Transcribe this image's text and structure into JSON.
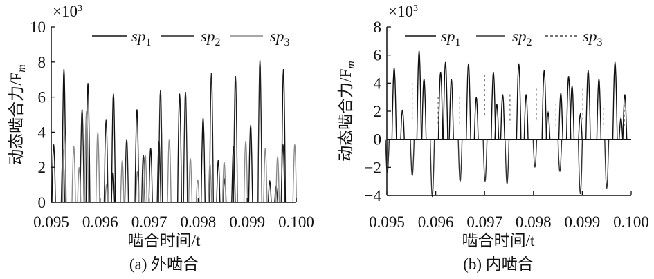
{
  "chart_data": [
    {
      "type": "line",
      "caption": "(a) 外啮合",
      "xlabel": "啮合时间/t",
      "ylabel": "动态啮合力/F",
      "ylabel_sub": "m",
      "y_multiplier": "×10",
      "y_multiplier_exp": "3",
      "xlim": [
        0.095,
        0.1
      ],
      "ylim": [
        0,
        10
      ],
      "xticks": [
        "0.095",
        "0.096",
        "0.097",
        "0.098",
        "0.099",
        "0.100"
      ],
      "yticks": [
        "0",
        "2",
        "4",
        "6",
        "8",
        "10"
      ],
      "legend_position": "top",
      "series": [
        {
          "name": "sp",
          "sub": "1",
          "color": "#111111",
          "style": "solid",
          "peaks": [
            [
              0.09505,
              3.3
            ],
            [
              0.09526,
              7.6
            ],
            [
              0.09575,
              6.8
            ],
            [
              0.09627,
              6.2
            ],
            [
              0.09675,
              5.3
            ],
            [
              0.09703,
              3.1
            ],
            [
              0.09762,
              6.2
            ],
            [
              0.0981,
              4.8
            ],
            [
              0.09841,
              2.4
            ],
            [
              0.09872,
              3.2
            ],
            [
              0.09907,
              4.4
            ],
            [
              0.09946,
              1.2
            ],
            [
              0.09974,
              7.6
            ],
            [
              0.09626,
              1.7
            ]
          ]
        },
        {
          "name": "sp",
          "sub": "2",
          "color": "#222222",
          "style": "solid",
          "peaks": [
            [
              0.09524,
              3.0
            ],
            [
              0.09563,
              5.3
            ],
            [
              0.09612,
              4.7
            ],
            [
              0.09654,
              3.6
            ],
            [
              0.09688,
              2.7
            ],
            [
              0.09723,
              6.4
            ],
            [
              0.0972,
              3.5
            ],
            [
              0.09774,
              6.3
            ],
            [
              0.09827,
              7.4
            ],
            [
              0.09854,
              1.3
            ],
            [
              0.09876,
              7.2
            ],
            [
              0.09926,
              8.1
            ],
            [
              0.09959,
              0.9
            ],
            [
              0.09973,
              3.3
            ]
          ]
        },
        {
          "name": "sp",
          "sub": "3",
          "color": "#8a8a8a",
          "style": "solid",
          "peaks": [
            [
              0.09527,
              4.0
            ],
            [
              0.09546,
              3.2
            ],
            [
              0.09557,
              2.0
            ],
            [
              0.09572,
              5.2
            ],
            [
              0.09595,
              4.0
            ],
            [
              0.09613,
              1.0
            ],
            [
              0.09645,
              2.4
            ],
            [
              0.09676,
              1.8
            ],
            [
              0.09692,
              2.7
            ],
            [
              0.09741,
              3.6
            ],
            [
              0.09784,
              2.5
            ],
            [
              0.09799,
              1.3
            ],
            [
              0.09824,
              2.2
            ],
            [
              0.09853,
              2.3
            ],
            [
              0.09897,
              3.5
            ],
            [
              0.09937,
              3.1
            ],
            [
              0.09962,
              2.6
            ],
            [
              0.09997,
              3.3
            ]
          ]
        }
      ]
    },
    {
      "type": "line",
      "caption": "(b) 内啮合",
      "xlabel": "啮合时间/t",
      "ylabel": "动态啮合力/F",
      "ylabel_sub": "m",
      "y_multiplier": "×10",
      "y_multiplier_exp": "3",
      "xlim": [
        0.095,
        0.1
      ],
      "ylim": [
        -4,
        8
      ],
      "xticks": [
        "0.095",
        "0.096",
        "0.097",
        "0.098",
        "0.099",
        "0.100"
      ],
      "yticks": [
        "−4",
        "−2",
        "0",
        "2",
        "4",
        "6",
        "8"
      ],
      "legend_position": "top",
      "series": [
        {
          "name": "sp",
          "sub": "1",
          "color": "#111111",
          "style": "solid",
          "peaks": [
            [
              0.09515,
              5.1
            ],
            [
              0.09532,
              2.1
            ],
            [
              0.09566,
              6.3
            ],
            [
              0.09576,
              4.3
            ],
            [
              0.0961,
              4.8
            ],
            [
              0.0962,
              5.5
            ],
            [
              0.09632,
              4.3
            ],
            [
              0.09667,
              5.4
            ],
            [
              0.09683,
              3.0
            ],
            [
              0.09718,
              4.8
            ],
            [
              0.09725,
              2.5
            ],
            [
              0.09737,
              3.2
            ],
            [
              0.0977,
              5.4
            ],
            [
              0.09785,
              3.2
            ],
            [
              0.09822,
              4.9
            ],
            [
              0.0983,
              1.9
            ],
            [
              0.09856,
              3.3
            ],
            [
              0.09872,
              4.5
            ],
            [
              0.09879,
              3.8
            ],
            [
              0.09896,
              1.8
            ],
            [
              0.09912,
              4.9
            ],
            [
              0.09934,
              4.3
            ],
            [
              0.09967,
              5.5
            ],
            [
              0.09979,
              1.5
            ],
            [
              0.09987,
              3.2
            ]
          ]
        },
        {
          "name": "sp",
          "sub": "2",
          "color": "#333333",
          "style": "solid",
          "peaks": [
            [
              0.09501,
              -2.4
            ],
            [
              0.09552,
              -2.6
            ],
            [
              0.09593,
              -4.1
            ],
            [
              0.0965,
              -3.0
            ],
            [
              0.09701,
              -3.0
            ],
            [
              0.09746,
              -3.2
            ],
            [
              0.09803,
              -2.0
            ],
            [
              0.09854,
              -2.3
            ],
            [
              0.09896,
              -3.9
            ],
            [
              0.0995,
              -3.5
            ]
          ]
        },
        {
          "name": "sp",
          "sub": "3",
          "color": "#444444",
          "style": "dashed",
          "peaks": [
            [
              0.09552,
              4.0
            ],
            [
              0.09605,
              3.0
            ],
            [
              0.09649,
              3.0
            ],
            [
              0.097,
              4.6
            ],
            [
              0.09752,
              3.2
            ],
            [
              0.09806,
              3.6
            ],
            [
              0.09846,
              2.5
            ],
            [
              0.09901,
              3.6
            ],
            [
              0.09943,
              2.2
            ],
            [
              0.09986,
              2.8
            ]
          ]
        }
      ]
    }
  ]
}
